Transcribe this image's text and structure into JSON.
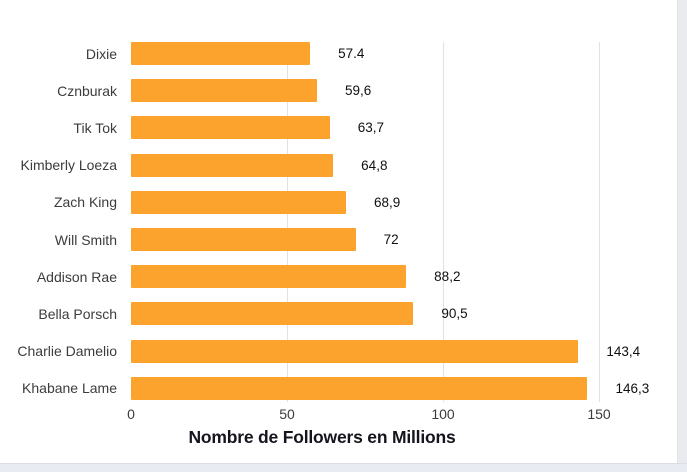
{
  "window": {
    "background": "#ffffff",
    "edge_strip_color": "#e9ebf0"
  },
  "chart_data": {
    "type": "bar",
    "orientation": "horizontal",
    "title": "",
    "xlabel": "Nombre de Followers en Millions",
    "ylabel": "",
    "categories": [
      "Dixie",
      "Cznburak",
      "Tik Tok",
      "Kimberly Loeza",
      "Zach King",
      "Will Smith",
      "Addison Rae",
      "Bella Porsch",
      "Charlie Damelio",
      "Khabane Lame"
    ],
    "values": [
      57.4,
      59.6,
      63.7,
      64.8,
      68.9,
      72,
      88.2,
      90.5,
      143.4,
      146.3
    ],
    "value_labels": [
      "57.4",
      "59,6",
      "63,7",
      "64,8",
      "68,9",
      "72",
      "88,2",
      "90,5",
      "143,4",
      "146,3"
    ],
    "x_ticks": [
      "0",
      "50",
      "100",
      "150"
    ],
    "x_tick_values": [
      0,
      50,
      100,
      150
    ],
    "xlim": [
      0,
      150
    ],
    "grid": "vertical",
    "legend": "none",
    "bar_color": "#FCA32D",
    "gridline_color": "#E2E2E2",
    "category_label_color": "#3C3C3C",
    "value_label_color": "#101010",
    "tick_label_color": "#3C3C3C",
    "axis_title_color": "#15151E"
  }
}
